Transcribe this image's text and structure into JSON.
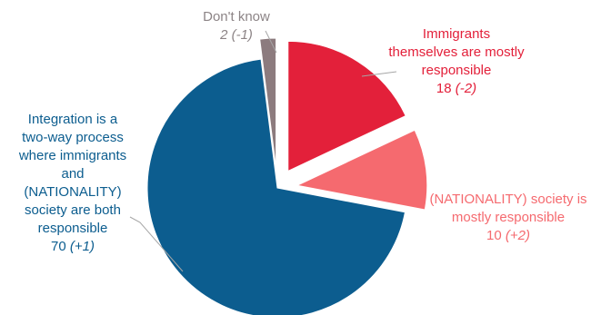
{
  "chart_data": {
    "type": "pie",
    "slices": [
      {
        "label_lines": [
          "Immigrants",
          "themselves are mostly",
          "responsible"
        ],
        "value": 18,
        "value_text": "18",
        "change_text": "(-2)",
        "color": "#e3203a"
      },
      {
        "label_lines": [
          "(NATIONALITY) society is",
          "mostly responsible"
        ],
        "value": 10,
        "value_text": "10",
        "change_text": "(+2)",
        "color": "#f56a6f"
      },
      {
        "label_lines": [
          "Integration is a",
          "two-way process",
          "where immigrants",
          "and",
          "(NATIONALITY)",
          "society are both",
          "responsible"
        ],
        "value": 70,
        "value_text": "70",
        "change_text": "(+1)",
        "color": "#0c5d8f"
      },
      {
        "label_lines": [
          "Don't know"
        ],
        "value": 2,
        "value_text": "2",
        "change_text": "(-1)",
        "color": "#8c7b7e"
      }
    ],
    "label_color_slice_4": "#8c8486",
    "leader_color": "#a6a6a6"
  }
}
